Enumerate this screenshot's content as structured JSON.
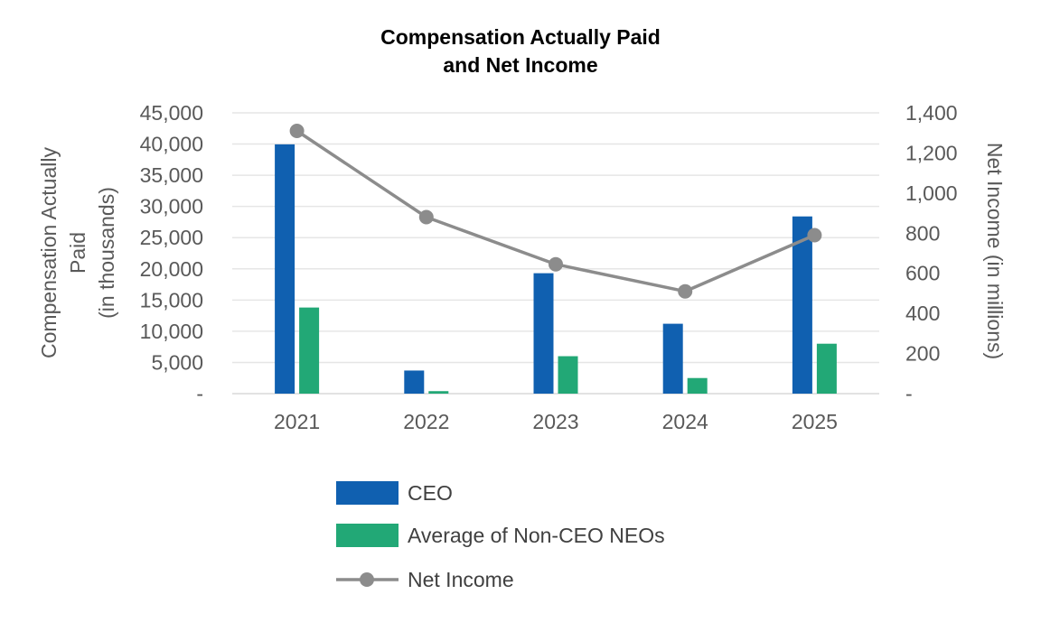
{
  "chart_data": {
    "type": "bar",
    "title_lines": [
      "Compensation Actually Paid",
      "and Net Income"
    ],
    "categories": [
      "2021",
      "2022",
      "2023",
      "2024",
      "2025"
    ],
    "series": [
      {
        "name": "CEO",
        "type": "bar",
        "axis": "left",
        "color": "#1060B0",
        "values": [
          39950,
          3700,
          19300,
          11200,
          28400
        ]
      },
      {
        "name": "Average of Non-CEO NEOs",
        "type": "bar",
        "axis": "left",
        "color": "#22A876",
        "values": [
          13800,
          400,
          6000,
          2500,
          8000
        ]
      },
      {
        "name": "Net Income",
        "type": "line",
        "axis": "right",
        "color": "#8C8C8C",
        "values": [
          1310,
          880,
          645,
          510,
          790
        ]
      }
    ],
    "y_left": {
      "label_lines": [
        "Compensation Actually",
        "Paid",
        "(in thousands)"
      ],
      "min": 0,
      "max": 45000,
      "ticks": [
        "-",
        "5,000",
        "10,000",
        "15,000",
        "20,000",
        "25,000",
        "30,000",
        "35,000",
        "40,000",
        "45,000"
      ]
    },
    "y_right": {
      "label": "Net Income (in millions)",
      "min": 0,
      "max": 1400,
      "ticks": [
        "-",
        "200",
        "400",
        "600",
        "800",
        "1,000",
        "1,200",
        "1,400"
      ]
    },
    "grid": true,
    "legend_position": "bottom"
  }
}
